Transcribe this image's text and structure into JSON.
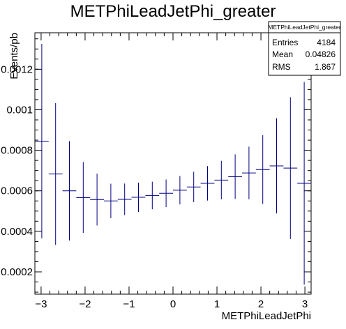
{
  "chart_data": {
    "type": "histogram-errorbars",
    "title": "METPhiLeadJetPhi_greater",
    "xlabel": "METPhiLeadJetPhi",
    "ylabel": "Events/pb",
    "xlim": [
      -3.1416,
      3.1416
    ],
    "ylim": [
      9e-05,
      0.00138
    ],
    "x_ticks": [
      -3,
      -2,
      -1,
      0,
      1,
      2,
      3
    ],
    "y_ticks": [
      0.0002,
      0.0004,
      0.0006,
      0.0008,
      0.001,
      0.0012
    ],
    "y_tick_labels": [
      "0.0002",
      "0.0004",
      "0.0006",
      "0.0008",
      "0.001",
      "0.0012"
    ],
    "line_color": "#000080",
    "bins": [
      {
        "x": -3.1416,
        "y": 0.000845,
        "err": 0.00048
      },
      {
        "x": -2.8274,
        "y": 0.000683,
        "err": 0.00035
      },
      {
        "x": -2.5133,
        "y": 0.0006,
        "err": 0.000245
      },
      {
        "x": -2.1991,
        "y": 0.000567,
        "err": 0.000175
      },
      {
        "x": -1.885,
        "y": 0.000557,
        "err": 0.000128
      },
      {
        "x": -1.5708,
        "y": 0.00055,
        "err": 8.5e-05
      },
      {
        "x": -1.2566,
        "y": 0.000558,
        "err": 7.8e-05
      },
      {
        "x": -0.9425,
        "y": 0.000568,
        "err": 7.2e-05
      },
      {
        "x": -0.6283,
        "y": 0.000577,
        "err": 6.8e-05
      },
      {
        "x": -0.3142,
        "y": 0.000588,
        "err": 6.8e-05
      },
      {
        "x": 0.0,
        "y": 0.000603,
        "err": 7e-05
      },
      {
        "x": 0.3142,
        "y": 0.000619,
        "err": 7.5e-05
      },
      {
        "x": 0.6283,
        "y": 0.000637,
        "err": 8.5e-05
      },
      {
        "x": 0.9425,
        "y": 0.000653,
        "err": 9.5e-05
      },
      {
        "x": 1.2566,
        "y": 0.00067,
        "err": 0.00011
      },
      {
        "x": 1.5708,
        "y": 0.000688,
        "err": 0.00013
      },
      {
        "x": 1.885,
        "y": 0.000705,
        "err": 0.00017
      },
      {
        "x": 2.1991,
        "y": 0.000723,
        "err": 0.000235
      },
      {
        "x": 2.5133,
        "y": 0.000712,
        "err": 0.00035
      },
      {
        "x": 2.8274,
        "y": 0.000637,
        "err": 0.0005
      }
    ],
    "bin_width": 0.31416,
    "stats_box": {
      "title": "METPhiLeadJetPhi_greater",
      "rows": [
        {
          "label": "Entries",
          "value": "4184"
        },
        {
          "label": "Mean",
          "value": "0.04826"
        },
        {
          "label": "RMS",
          "value": "1.867"
        }
      ]
    }
  }
}
